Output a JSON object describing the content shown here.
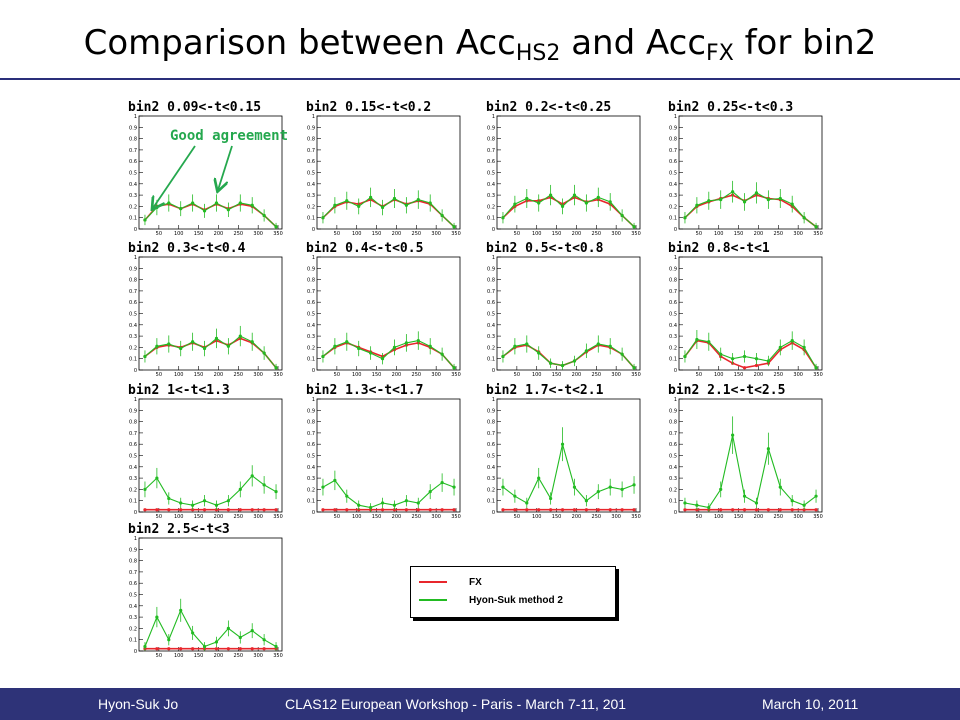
{
  "slide": {
    "title_main": "Comparison between Acc",
    "title_sub1": "HS2",
    "title_mid": " and Acc",
    "title_sub2": "FX",
    "title_end": " for bin2"
  },
  "annotation": "Good agreement",
  "legend": {
    "items": [
      {
        "label": "FX",
        "color": "#e8262c"
      },
      {
        "label": "Hyon-Suk method 2",
        "color": "#22bb22"
      }
    ]
  },
  "footer": {
    "left": "Hyon-Suk Jo",
    "center": "CLAS12 European Workshop - Paris - March 7-11, 201",
    "right": "March 10, 2011"
  },
  "chart_data": [
    {
      "type": "scatter",
      "title": "bin2 0.09<-t<0.15",
      "ylim": [
        0,
        1
      ],
      "xlim": [
        0,
        360
      ],
      "yticks": [
        "0",
        "0.1",
        "0.2",
        "0.3",
        "0.4",
        "0.5",
        "0.6",
        "0.7",
        "0.8",
        "0.9",
        "1"
      ],
      "xticks": [
        "50",
        "100",
        "150",
        "200",
        "250",
        "300",
        "350"
      ],
      "x": [
        15,
        45,
        75,
        105,
        135,
        165,
        195,
        225,
        255,
        285,
        315,
        345
      ],
      "series": [
        {
          "name": "FX",
          "values": [
            0.08,
            0.2,
            0.22,
            0.18,
            0.22,
            0.17,
            0.22,
            0.18,
            0.22,
            0.2,
            0.12,
            0.02
          ]
        },
        {
          "name": "Hyon-Suk method 2",
          "values": [
            0.08,
            0.19,
            0.23,
            0.18,
            0.23,
            0.16,
            0.23,
            0.17,
            0.23,
            0.21,
            0.12,
            0.02
          ]
        }
      ]
    },
    {
      "type": "scatter",
      "title": "bin2 0.15<-t<0.2",
      "ylim": [
        0,
        1
      ],
      "xlim": [
        0,
        360
      ],
      "yticks": [
        "0",
        "0.1",
        "0.2",
        "0.3",
        "0.4",
        "0.5",
        "0.6",
        "0.7",
        "0.8",
        "0.9",
        "1"
      ],
      "xticks": [
        "50",
        "100",
        "150",
        "200",
        "250",
        "300",
        "350"
      ],
      "x": [
        15,
        45,
        75,
        105,
        135,
        165,
        195,
        225,
        255,
        285,
        315,
        345
      ],
      "series": [
        {
          "name": "FX",
          "values": [
            0.1,
            0.2,
            0.24,
            0.22,
            0.26,
            0.2,
            0.26,
            0.22,
            0.25,
            0.22,
            0.12,
            0.02
          ]
        },
        {
          "name": "Hyon-Suk method 2",
          "values": [
            0.1,
            0.21,
            0.25,
            0.2,
            0.28,
            0.19,
            0.27,
            0.21,
            0.26,
            0.23,
            0.12,
            0.02
          ]
        }
      ]
    },
    {
      "type": "scatter",
      "title": "bin2 0.2<-t<0.25",
      "ylim": [
        0,
        1
      ],
      "xlim": [
        0,
        360
      ],
      "yticks": [
        "0",
        "0.1",
        "0.2",
        "0.3",
        "0.4",
        "0.5",
        "0.6",
        "0.7",
        "0.8",
        "0.9",
        "1"
      ],
      "xticks": [
        "50",
        "100",
        "150",
        "200",
        "250",
        "300",
        "350"
      ],
      "x": [
        15,
        45,
        75,
        105,
        135,
        165,
        195,
        225,
        255,
        285,
        315,
        345
      ],
      "series": [
        {
          "name": "FX",
          "values": [
            0.1,
            0.2,
            0.25,
            0.25,
            0.28,
            0.22,
            0.28,
            0.24,
            0.26,
            0.22,
            0.12,
            0.02
          ]
        },
        {
          "name": "Hyon-Suk method 2",
          "values": [
            0.1,
            0.22,
            0.27,
            0.23,
            0.3,
            0.2,
            0.3,
            0.23,
            0.28,
            0.24,
            0.12,
            0.02
          ]
        }
      ]
    },
    {
      "type": "scatter",
      "title": "bin2 0.25<-t<0.3",
      "ylim": [
        0,
        1
      ],
      "xlim": [
        0,
        360
      ],
      "yticks": [
        "0",
        "0.1",
        "0.2",
        "0.3",
        "0.4",
        "0.5",
        "0.6",
        "0.7",
        "0.8",
        "0.9",
        "1"
      ],
      "xticks": [
        "50",
        "100",
        "150",
        "200",
        "250",
        "300",
        "350"
      ],
      "x": [
        15,
        45,
        75,
        105,
        135,
        165,
        195,
        225,
        255,
        285,
        315,
        345
      ],
      "series": [
        {
          "name": "FX",
          "values": [
            0.1,
            0.2,
            0.24,
            0.27,
            0.3,
            0.25,
            0.3,
            0.27,
            0.26,
            0.2,
            0.1,
            0.02
          ]
        },
        {
          "name": "Hyon-Suk method 2",
          "values": [
            0.1,
            0.21,
            0.25,
            0.26,
            0.33,
            0.24,
            0.32,
            0.26,
            0.27,
            0.22,
            0.1,
            0.02
          ]
        }
      ]
    },
    {
      "type": "scatter",
      "title": "bin2 0.3<-t<0.4",
      "ylim": [
        0,
        1
      ],
      "xlim": [
        0,
        360
      ],
      "yticks": [
        "0",
        "0.1",
        "0.2",
        "0.3",
        "0.4",
        "0.5",
        "0.6",
        "0.7",
        "0.8",
        "0.9",
        "1"
      ],
      "xticks": [
        "50",
        "100",
        "150",
        "200",
        "250",
        "300",
        "350"
      ],
      "x": [
        15,
        45,
        75,
        105,
        135,
        165,
        195,
        225,
        255,
        285,
        315,
        345
      ],
      "series": [
        {
          "name": "FX",
          "values": [
            0.12,
            0.2,
            0.22,
            0.2,
            0.24,
            0.2,
            0.26,
            0.22,
            0.28,
            0.24,
            0.15,
            0.02
          ]
        },
        {
          "name": "Hyon-Suk method 2",
          "values": [
            0.12,
            0.21,
            0.23,
            0.19,
            0.25,
            0.19,
            0.28,
            0.21,
            0.3,
            0.25,
            0.15,
            0.02
          ]
        }
      ]
    },
    {
      "type": "scatter",
      "title": "bin2 0.4<-t<0.5",
      "ylim": [
        0,
        1
      ],
      "xlim": [
        0,
        360
      ],
      "yticks": [
        "0",
        "0.1",
        "0.2",
        "0.3",
        "0.4",
        "0.5",
        "0.6",
        "0.7",
        "0.8",
        "0.9",
        "1"
      ],
      "xticks": [
        "50",
        "100",
        "150",
        "200",
        "250",
        "300",
        "350"
      ],
      "x": [
        15,
        45,
        75,
        105,
        135,
        165,
        195,
        225,
        255,
        285,
        315,
        345
      ],
      "series": [
        {
          "name": "FX",
          "values": [
            0.12,
            0.2,
            0.24,
            0.2,
            0.16,
            0.12,
            0.18,
            0.22,
            0.24,
            0.2,
            0.14,
            0.02
          ]
        },
        {
          "name": "Hyon-Suk method 2",
          "values": [
            0.12,
            0.21,
            0.25,
            0.19,
            0.15,
            0.1,
            0.2,
            0.24,
            0.26,
            0.21,
            0.14,
            0.02
          ]
        }
      ]
    },
    {
      "type": "scatter",
      "title": "bin2 0.5<-t<0.8",
      "ylim": [
        0,
        1
      ],
      "xlim": [
        0,
        360
      ],
      "yticks": [
        "0",
        "0.1",
        "0.2",
        "0.3",
        "0.4",
        "0.5",
        "0.6",
        "0.7",
        "0.8",
        "0.9",
        "1"
      ],
      "xticks": [
        "50",
        "100",
        "150",
        "200",
        "250",
        "300",
        "350"
      ],
      "x": [
        15,
        45,
        75,
        105,
        135,
        165,
        195,
        225,
        255,
        285,
        315,
        345
      ],
      "series": [
        {
          "name": "FX",
          "values": [
            0.12,
            0.2,
            0.22,
            0.16,
            0.06,
            0.04,
            0.08,
            0.16,
            0.22,
            0.2,
            0.14,
            0.02
          ]
        },
        {
          "name": "Hyon-Suk method 2",
          "values": [
            0.12,
            0.21,
            0.23,
            0.15,
            0.06,
            0.04,
            0.08,
            0.17,
            0.23,
            0.21,
            0.14,
            0.02
          ]
        }
      ]
    },
    {
      "type": "scatter",
      "title": "bin2 0.8<-t<1",
      "ylim": [
        0,
        1
      ],
      "xlim": [
        0,
        360
      ],
      "yticks": [
        "0",
        "0.1",
        "0.2",
        "0.3",
        "0.4",
        "0.5",
        "0.6",
        "0.7",
        "0.8",
        "0.9",
        "1"
      ],
      "xticks": [
        "50",
        "100",
        "150",
        "200",
        "250",
        "300",
        "350"
      ],
      "x": [
        15,
        45,
        75,
        105,
        135,
        165,
        195,
        225,
        255,
        285,
        315,
        345
      ],
      "series": [
        {
          "name": "FX",
          "values": [
            0.12,
            0.26,
            0.24,
            0.12,
            0.06,
            0.02,
            0.04,
            0.06,
            0.18,
            0.24,
            0.18,
            0.02
          ]
        },
        {
          "name": "Hyon-Suk method 2",
          "values": [
            0.12,
            0.27,
            0.25,
            0.14,
            0.1,
            0.12,
            0.1,
            0.08,
            0.2,
            0.26,
            0.2,
            0.02
          ]
        }
      ]
    },
    {
      "type": "scatter",
      "title": "bin2 1<-t<1.3",
      "ylim": [
        0,
        1
      ],
      "xlim": [
        0,
        360
      ],
      "yticks": [
        "0",
        "0.1",
        "0.2",
        "0.3",
        "0.4",
        "0.5",
        "0.6",
        "0.7",
        "0.8",
        "0.9",
        "1"
      ],
      "xticks": [
        "50",
        "100",
        "150",
        "200",
        "250",
        "300",
        "350"
      ],
      "x": [
        15,
        45,
        75,
        105,
        135,
        165,
        195,
        225,
        255,
        285,
        315,
        345
      ],
      "series": [
        {
          "name": "FX",
          "values": [
            0.02,
            0.02,
            0.02,
            0.02,
            0.02,
            0.02,
            0.02,
            0.02,
            0.02,
            0.02,
            0.02,
            0.02
          ]
        },
        {
          "name": "Hyon-Suk method 2",
          "values": [
            0.2,
            0.3,
            0.12,
            0.08,
            0.06,
            0.1,
            0.06,
            0.1,
            0.2,
            0.32,
            0.24,
            0.18
          ]
        }
      ]
    },
    {
      "type": "scatter",
      "title": "bin2 1.3<-t<1.7",
      "ylim": [
        0,
        1
      ],
      "xlim": [
        0,
        360
      ],
      "yticks": [
        "0",
        "0.1",
        "0.2",
        "0.3",
        "0.4",
        "0.5",
        "0.6",
        "0.7",
        "0.8",
        "0.9",
        "1"
      ],
      "xticks": [
        "50",
        "100",
        "150",
        "200",
        "250",
        "300",
        "350"
      ],
      "x": [
        15,
        45,
        75,
        105,
        135,
        165,
        195,
        225,
        255,
        285,
        315,
        345
      ],
      "series": [
        {
          "name": "FX",
          "values": [
            0.02,
            0.02,
            0.02,
            0.02,
            0.02,
            0.02,
            0.02,
            0.02,
            0.02,
            0.02,
            0.02,
            0.02
          ]
        },
        {
          "name": "Hyon-Suk method 2",
          "values": [
            0.22,
            0.28,
            0.14,
            0.06,
            0.04,
            0.08,
            0.06,
            0.1,
            0.08,
            0.18,
            0.26,
            0.22
          ]
        }
      ]
    },
    {
      "type": "scatter",
      "title": "bin2 1.7<-t<2.1",
      "ylim": [
        0,
        1
      ],
      "xlim": [
        0,
        360
      ],
      "yticks": [
        "0",
        "0.1",
        "0.2",
        "0.3",
        "0.4",
        "0.5",
        "0.6",
        "0.7",
        "0.8",
        "0.9",
        "1"
      ],
      "xticks": [
        "50",
        "100",
        "150",
        "200",
        "250",
        "300",
        "350"
      ],
      "x": [
        15,
        45,
        75,
        105,
        135,
        165,
        195,
        225,
        255,
        285,
        315,
        345
      ],
      "series": [
        {
          "name": "FX",
          "values": [
            0.02,
            0.02,
            0.02,
            0.02,
            0.02,
            0.02,
            0.02,
            0.02,
            0.02,
            0.02,
            0.02,
            0.02
          ]
        },
        {
          "name": "Hyon-Suk method 2",
          "values": [
            0.22,
            0.14,
            0.08,
            0.3,
            0.12,
            0.6,
            0.22,
            0.1,
            0.18,
            0.22,
            0.2,
            0.24
          ]
        }
      ]
    },
    {
      "type": "scatter",
      "title": "bin2 2.1<-t<2.5",
      "ylim": [
        0,
        1
      ],
      "xlim": [
        0,
        360
      ],
      "yticks": [
        "0",
        "0.1",
        "0.2",
        "0.3",
        "0.4",
        "0.5",
        "0.6",
        "0.7",
        "0.8",
        "0.9",
        "1"
      ],
      "xticks": [
        "50",
        "100",
        "150",
        "200",
        "250",
        "300",
        "350"
      ],
      "x": [
        15,
        45,
        75,
        105,
        135,
        165,
        195,
        225,
        255,
        285,
        315,
        345
      ],
      "series": [
        {
          "name": "FX",
          "values": [
            0.02,
            0.02,
            0.02,
            0.02,
            0.02,
            0.02,
            0.02,
            0.02,
            0.02,
            0.02,
            0.02,
            0.02
          ]
        },
        {
          "name": "Hyon-Suk method 2",
          "values": [
            0.08,
            0.06,
            0.04,
            0.2,
            0.68,
            0.14,
            0.08,
            0.56,
            0.22,
            0.1,
            0.06,
            0.14
          ]
        }
      ]
    },
    {
      "type": "scatter",
      "title": "bin2 2.5<-t<3",
      "ylim": [
        0,
        1
      ],
      "xlim": [
        0,
        360
      ],
      "yticks": [
        "0",
        "0.1",
        "0.2",
        "0.3",
        "0.4",
        "0.5",
        "0.6",
        "0.7",
        "0.8",
        "0.9",
        "1"
      ],
      "xticks": [
        "50",
        "100",
        "150",
        "200",
        "250",
        "300",
        "350"
      ],
      "x": [
        15,
        45,
        75,
        105,
        135,
        165,
        195,
        225,
        255,
        285,
        315,
        345
      ],
      "series": [
        {
          "name": "FX",
          "values": [
            0.02,
            0.02,
            0.02,
            0.02,
            0.02,
            0.02,
            0.02,
            0.02,
            0.02,
            0.02,
            0.02,
            0.02
          ]
        },
        {
          "name": "Hyon-Suk method 2",
          "values": [
            0.04,
            0.3,
            0.1,
            0.36,
            0.16,
            0.04,
            0.08,
            0.2,
            0.12,
            0.18,
            0.1,
            0.04
          ]
        }
      ]
    }
  ]
}
